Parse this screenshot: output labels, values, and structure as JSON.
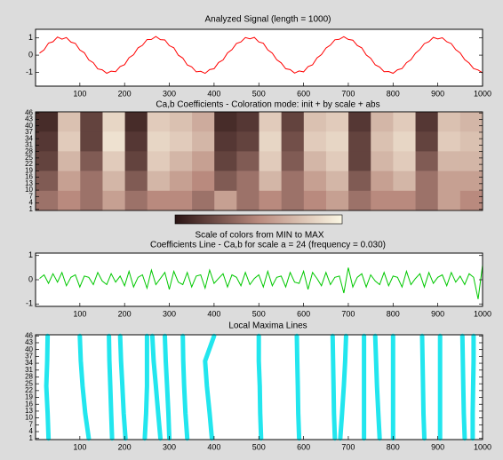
{
  "chart_data": [
    {
      "type": "line",
      "title": "Analyzed Signal (length = 1000)",
      "color": "#ff0000",
      "x": [
        10,
        20,
        30,
        40,
        50,
        60,
        70,
        80,
        90,
        100,
        110,
        120,
        130,
        140,
        150,
        160,
        170,
        180,
        190,
        200,
        210,
        220,
        230,
        240,
        250,
        260,
        270,
        280,
        290,
        300,
        310,
        320,
        330,
        340,
        350,
        360,
        370,
        380,
        390,
        400,
        410,
        420,
        430,
        440,
        450,
        460,
        470,
        480,
        490,
        500,
        510,
        520,
        530,
        540,
        550,
        560,
        570,
        580,
        590,
        600,
        610,
        620,
        630,
        640,
        650,
        660,
        670,
        680,
        690,
        700,
        710,
        720,
        730,
        740,
        750,
        760,
        770,
        780,
        790,
        800,
        810,
        820,
        830,
        840,
        850,
        860,
        870,
        880,
        890,
        900,
        910,
        920,
        930,
        940,
        950,
        960,
        970,
        980,
        990,
        1000
      ],
      "values": [
        0.12,
        0.31,
        0.7,
        0.78,
        1.05,
        0.93,
        1.02,
        0.76,
        0.68,
        0.3,
        0.14,
        -0.28,
        -0.44,
        -0.8,
        -0.85,
        -1.05,
        -0.93,
        -0.96,
        -0.66,
        -0.55,
        -0.15,
        0.02,
        0.42,
        0.57,
        0.9,
        0.91,
        1.08,
        0.9,
        0.88,
        0.55,
        0.43,
        0.0,
        -0.17,
        -0.57,
        -0.68,
        -0.97,
        -0.94,
        -1.06,
        -0.84,
        -0.79,
        -0.43,
        -0.28,
        0.13,
        0.32,
        0.68,
        0.77,
        1.02,
        0.95,
        1.03,
        0.77,
        0.69,
        0.31,
        0.12,
        -0.27,
        -0.45,
        -0.79,
        -0.84,
        -1.04,
        -0.92,
        -0.97,
        -0.67,
        -0.56,
        -0.16,
        0.03,
        0.41,
        0.58,
        0.89,
        0.92,
        1.07,
        0.91,
        0.87,
        0.56,
        0.42,
        0.01,
        -0.18,
        -0.56,
        -0.69,
        -0.96,
        -0.95,
        -1.05,
        -0.85,
        -0.78,
        -0.44,
        -0.27,
        0.11,
        0.33,
        0.67,
        0.78,
        1.03,
        0.94,
        1.01,
        0.78,
        0.67,
        0.32,
        0.13,
        -0.26,
        -0.46,
        -0.78,
        -0.86,
        -1.03
      ],
      "xlim": [
        1,
        1000
      ],
      "xticks": [
        100,
        200,
        300,
        400,
        500,
        600,
        700,
        800,
        900,
        1000
      ],
      "ylim": [
        -1.8,
        1.5
      ],
      "yticks": [
        -1,
        0,
        1
      ]
    },
    {
      "type": "heatmap",
      "title": "Ca,b Coefficients - Coloration mode: init + by scale + abs",
      "values": [
        [
          0.1,
          0.75,
          0.2,
          0.85,
          0.1,
          0.8,
          0.75,
          0.65,
          0.1,
          0.15,
          0.8,
          0.2,
          0.75,
          0.8,
          0.15,
          0.7,
          0.8,
          0.15,
          0.75,
          0.7
        ],
        [
          0.15,
          0.8,
          0.2,
          0.9,
          0.15,
          0.85,
          0.8,
          0.7,
          0.15,
          0.2,
          0.85,
          0.25,
          0.8,
          0.85,
          0.2,
          0.75,
          0.85,
          0.2,
          0.8,
          0.75
        ],
        [
          0.2,
          0.7,
          0.3,
          0.8,
          0.2,
          0.8,
          0.7,
          0.6,
          0.2,
          0.3,
          0.8,
          0.3,
          0.7,
          0.8,
          0.2,
          0.7,
          0.8,
          0.3,
          0.7,
          0.7
        ],
        [
          0.3,
          0.6,
          0.4,
          0.7,
          0.3,
          0.7,
          0.6,
          0.5,
          0.3,
          0.4,
          0.7,
          0.4,
          0.6,
          0.7,
          0.3,
          0.6,
          0.7,
          0.4,
          0.6,
          0.6
        ],
        [
          0.4,
          0.5,
          0.4,
          0.6,
          0.4,
          0.5,
          0.5,
          0.4,
          0.6,
          0.4,
          0.5,
          0.4,
          0.5,
          0.6,
          0.4,
          0.5,
          0.5,
          0.4,
          0.6,
          0.5
        ]
      ],
      "xlim": [
        1,
        1000
      ],
      "ylim": [
        0.5,
        46.5
      ],
      "yticks": [
        46,
        43,
        40,
        37,
        34,
        31,
        28,
        25,
        22,
        19,
        16,
        13,
        10,
        7,
        4,
        1
      ],
      "colorbar_label": "Scale of colors from MIN to MAX"
    },
    {
      "type": "line",
      "title": "Coefficients Line - Ca,b for scale a = 24  (frequency =  0.030)",
      "color": "#00c800",
      "x": [
        10,
        20,
        30,
        40,
        50,
        60,
        70,
        80,
        90,
        100,
        110,
        120,
        130,
        140,
        150,
        160,
        170,
        180,
        190,
        200,
        210,
        220,
        230,
        240,
        250,
        260,
        270,
        280,
        290,
        300,
        310,
        320,
        330,
        340,
        350,
        360,
        370,
        380,
        390,
        400,
        410,
        420,
        430,
        440,
        450,
        460,
        470,
        480,
        490,
        500,
        510,
        520,
        530,
        540,
        550,
        560,
        570,
        580,
        590,
        600,
        610,
        620,
        630,
        640,
        650,
        660,
        670,
        680,
        690,
        700,
        710,
        720,
        730,
        740,
        750,
        760,
        770,
        780,
        790,
        800,
        810,
        820,
        830,
        840,
        850,
        860,
        870,
        880,
        890,
        900,
        910,
        920,
        930,
        940,
        950,
        960,
        970,
        980,
        990,
        1000
      ],
      "values": [
        0.05,
        0.2,
        -0.15,
        0.25,
        -0.1,
        0.3,
        -0.25,
        0.1,
        0.2,
        -0.3,
        0.15,
        0.1,
        -0.2,
        0.3,
        -0.05,
        -0.2,
        0.25,
        -0.1,
        0.15,
        -0.25,
        0.35,
        -0.3,
        0.1,
        0.2,
        -0.35,
        0.4,
        -0.2,
        0.05,
        0.3,
        -0.4,
        0.35,
        -0.1,
        -0.2,
        0.3,
        -0.3,
        0.15,
        0.2,
        -0.35,
        0.4,
        -0.15,
        0.05,
        0.25,
        -0.3,
        0.2,
        0.1,
        -0.25,
        0.3,
        -0.2,
        0.05,
        0.2,
        -0.3,
        0.35,
        -0.25,
        0.1,
        0.15,
        -0.3,
        0.3,
        -0.1,
        -0.15,
        0.35,
        -0.4,
        0.3,
        0.05,
        -0.25,
        0.3,
        -0.2,
        0.1,
        0.15,
        -0.55,
        0.5,
        -0.3,
        0.1,
        0.25,
        -0.3,
        0.2,
        -0.05,
        -0.2,
        0.3,
        -0.25,
        0.15,
        0.1,
        -0.3,
        0.35,
        -0.2,
        0.05,
        0.25,
        -0.3,
        0.3,
        -0.15,
        0.1,
        0.2,
        -0.25,
        0.3,
        -0.1,
        0.15,
        -0.2,
        0.25,
        0.1,
        -0.8,
        0.6
      ],
      "xlim": [
        1,
        1000
      ],
      "xticks": [
        100,
        200,
        300,
        400,
        500,
        600,
        700,
        800,
        900,
        1000
      ],
      "ylim": [
        -1.1,
        1.1
      ],
      "yticks": [
        -1,
        0,
        1
      ]
    },
    {
      "type": "maxima",
      "title": "Local Maxima Lines",
      "color": "#22e6ee",
      "y": [
        1,
        12,
        24,
        35,
        46
      ],
      "lines": [
        [
          30,
          28,
          25,
          27,
          28
        ],
        [
          120,
          112,
          106,
          102,
          100
        ],
        [
          172,
          170,
          168,
          166,
          165
        ],
        [
          202,
          198,
          195,
          192,
          190
        ],
        [
          245,
          248,
          250,
          250,
          250
        ],
        [
          280,
          275,
          270,
          265,
          262
        ],
        [
          300,
          298,
          295,
          292,
          290
        ],
        [
          340,
          336,
          333,
          331,
          330
        ],
        [
          395,
          390,
          384,
          380,
          400
        ],
        [
          505,
          503,
          502,
          500,
          500
        ],
        [
          590,
          588,
          587,
          586,
          585
        ],
        [
          670,
          668,
          667,
          666,
          665
        ],
        [
          682,
          686,
          690,
          693,
          695
        ],
        [
          735,
          735,
          735,
          735,
          735
        ],
        [
          770,
          767,
          764,
          762,
          760
        ],
        [
          800,
          800,
          800,
          800,
          800
        ],
        [
          870,
          868,
          867,
          866,
          865
        ],
        [
          905,
          905,
          905,
          905,
          905
        ],
        [
          960,
          958,
          957,
          956,
          955
        ],
        [
          978,
          978,
          979,
          980,
          980
        ]
      ],
      "xlim": [
        1,
        1000
      ],
      "xticks": [
        100,
        200,
        300,
        400,
        500,
        600,
        700,
        800,
        900,
        1000
      ],
      "ylim": [
        0.5,
        46.5
      ],
      "yticks": [
        46,
        43,
        40,
        37,
        34,
        31,
        28,
        25,
        22,
        19,
        16,
        13,
        10,
        7,
        4,
        1
      ]
    }
  ]
}
